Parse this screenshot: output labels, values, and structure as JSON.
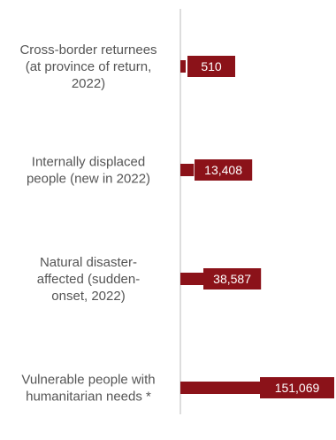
{
  "colors": {
    "bar": "#8b1219",
    "axis": "#bbbbbb",
    "label_text": "#555555",
    "value_text": "#ffffff"
  },
  "chart_data": {
    "type": "bar",
    "orientation": "horizontal",
    "categories": [
      [
        "Cross-border returnees",
        "(at province of return,",
        "2022)"
      ],
      [
        "Internally displaced",
        "people (new in 2022)"
      ],
      [
        "Natural disaster-",
        "affected (sudden-",
        "onset, 2022)"
      ],
      [
        "Vulnerable people with",
        "humanitarian needs *"
      ]
    ],
    "values": [
      510,
      13408,
      38587,
      151069
    ],
    "value_labels": [
      "510",
      "13,408",
      "38,587",
      "151,069"
    ],
    "title": "",
    "xlabel": "",
    "ylabel": "",
    "grid": false,
    "legend": "none"
  }
}
